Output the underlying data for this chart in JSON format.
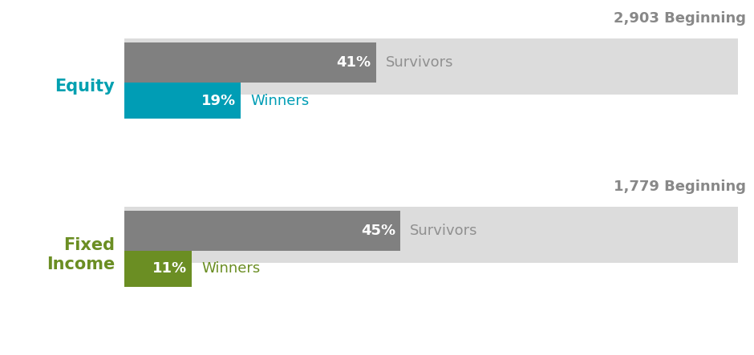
{
  "background_color": "#ffffff",
  "sections": [
    {
      "label": "Equity",
      "label_color": "#00a0b0",
      "beginning_text": "2,903 Beginning",
      "beginning_color": "#888888",
      "bar_background_color": "#dcdcdc",
      "survivors_pct": 41,
      "survivors_color": "#808080",
      "winners_pct": 19,
      "winners_color": "#009db5",
      "survivors_label": "Survivors",
      "survivors_label_color": "#909090",
      "winners_label": "Winners",
      "winners_label_color": "#009db5"
    },
    {
      "label": "Fixed\nIncome",
      "label_color": "#6b8e23",
      "beginning_text": "1,779 Beginning",
      "beginning_color": "#888888",
      "bar_background_color": "#dcdcdc",
      "survivors_pct": 45,
      "survivors_color": "#808080",
      "winners_pct": 11,
      "winners_color": "#6b8e23",
      "survivors_label": "Survivors",
      "survivors_label_color": "#909090",
      "winners_label": "Winners",
      "winners_label_color": "#6b8e23"
    }
  ],
  "pct_label_fontsize": 13,
  "category_label_fontsize": 15,
  "annotation_fontsize": 12,
  "beginning_fontsize": 13
}
